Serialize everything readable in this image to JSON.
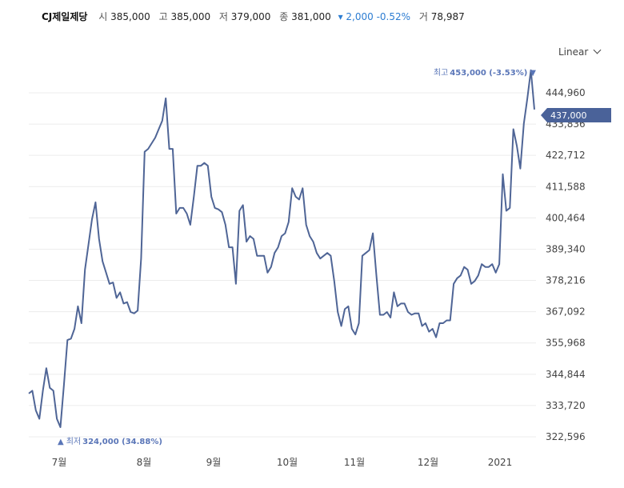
{
  "header": {
    "name": "CJ제일제당",
    "open_label": "시",
    "open": "385,000",
    "high_label": "고",
    "high": "385,000",
    "low_label": "저",
    "low": "379,000",
    "close_label": "종",
    "close": "381,000",
    "change": "▾ 2,000 -0.52%",
    "volume_label": "거",
    "volume": "78,987"
  },
  "scale_selector": {
    "label": "Linear"
  },
  "chart_data": {
    "type": "line",
    "series": [
      {
        "name": "CJ제일제당",
        "color": "#4f6596",
        "values": [
          338000,
          339000,
          332000,
          329000,
          339000,
          347000,
          340000,
          339000,
          329000,
          326000,
          341000,
          357000,
          357500,
          361000,
          369000,
          363000,
          382000,
          391000,
          400000,
          406000,
          393000,
          385000,
          381000,
          377000,
          377500,
          372000,
          374000,
          370000,
          370500,
          367000,
          366500,
          367500,
          386000,
          424000,
          425000,
          427000,
          429000,
          432000,
          435000,
          443000,
          425000,
          425000,
          402000,
          404000,
          404000,
          402000,
          398000,
          408000,
          419000,
          419000,
          420000,
          419000,
          408000,
          404000,
          403500,
          402500,
          398000,
          390000,
          390000,
          377000,
          403000,
          405000,
          392000,
          394000,
          393000,
          387000,
          387000,
          387000,
          381000,
          383000,
          388000,
          390000,
          394000,
          395000,
          399000,
          411000,
          408000,
          407000,
          411000,
          398000,
          394000,
          392000,
          388000,
          386000,
          387000,
          388000,
          387000,
          378000,
          367000,
          362000,
          368000,
          369000,
          361000,
          359000,
          363000,
          387000,
          388000,
          389000,
          395000,
          380000,
          366000,
          366000,
          367000,
          365000,
          374000,
          369000,
          370000,
          370000,
          367000,
          366000,
          366500,
          366500,
          362000,
          363000,
          360000,
          361000,
          358000,
          363000,
          363000,
          364000,
          364000,
          377000,
          379000,
          380000,
          383000,
          382000,
          377000,
          378000,
          380000,
          384000,
          383000,
          383000,
          384000,
          381000,
          384000,
          416000,
          403000,
          404000,
          432000,
          426000,
          418000,
          434000,
          443000,
          453000,
          439000
        ]
      }
    ],
    "x_tick_labels": [
      "7월",
      "8월",
      "9월",
      "10월",
      "11월",
      "12월",
      "2021"
    ],
    "y_tick_labels": [
      "444,960",
      "433,836",
      "422,712",
      "411,588",
      "400,464",
      "389,340",
      "378,216",
      "367,092",
      "355,968",
      "344,844",
      "333,720",
      "322,596"
    ],
    "y_ticks": [
      444960,
      433836,
      422712,
      411588,
      400464,
      389340,
      378216,
      367092,
      355968,
      344844,
      333720,
      322596
    ],
    "ylim": [
      322596,
      444960
    ],
    "current_price_label": "437,000",
    "current_price": 437000,
    "max_annotation": {
      "label": "최고",
      "value": "453,000 (-3.53%)",
      "marker": "▼",
      "price": 453000
    },
    "min_annotation": {
      "label": "최저",
      "value": "324,000 (34.88%)",
      "marker": "▲",
      "price": 324000
    },
    "grid": true,
    "legend": "none"
  }
}
